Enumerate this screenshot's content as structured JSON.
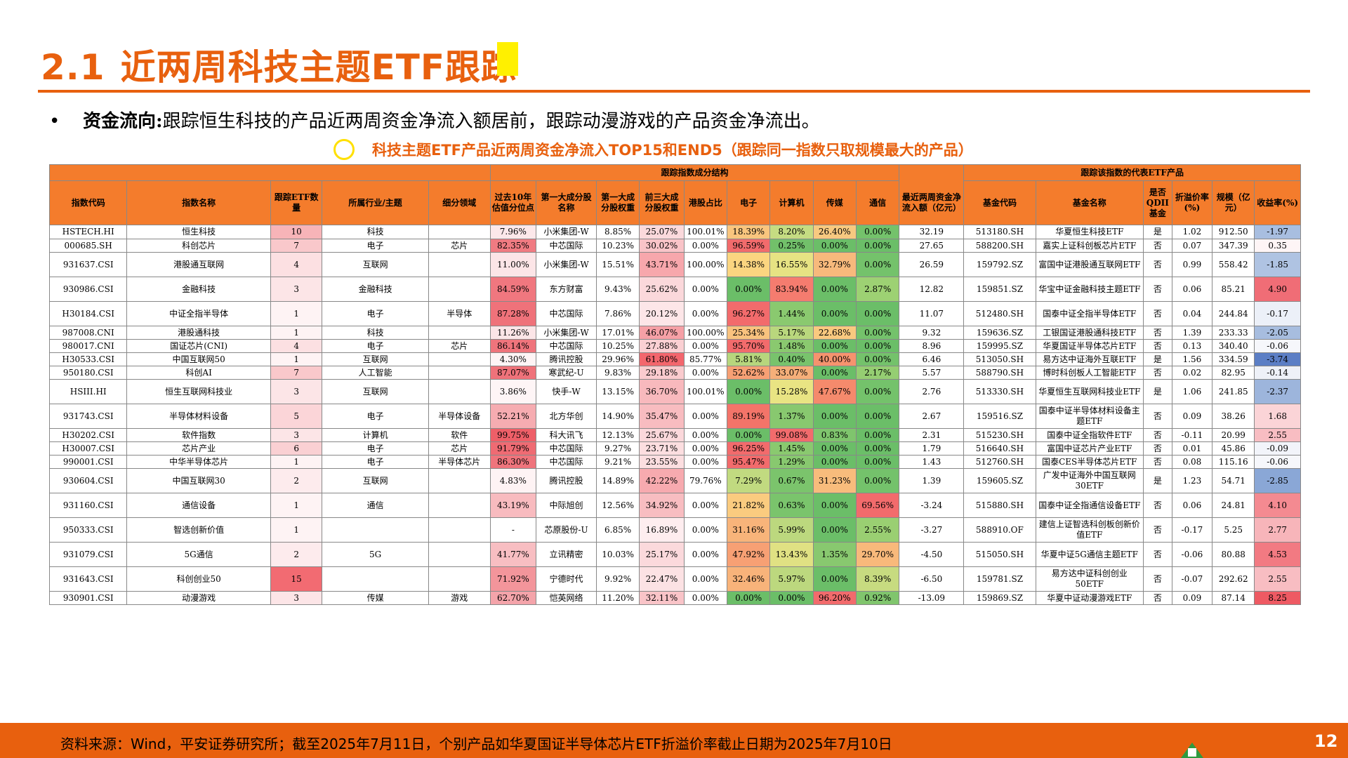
{
  "header": {
    "section_num": "2.1",
    "title": "近两周科技主题ETF跟踪",
    "bullet_symbol": "•",
    "bullet_bold": "资金流向:",
    "bullet_text": "跟踪恒生科技的产品近两周资金净流入额居前，跟踪动漫游戏的产品资金净流出。",
    "subtitle": "科技主题ETF产品近两周资金净流入TOP15和END5（跟踪同一指数只取规模最大的产品）"
  },
  "table": {
    "group_headers": {
      "index_structure": "跟踪指数成分结构",
      "etf_rep": "跟踪该指数的代表ETF产品"
    },
    "columns": [
      "指数代码",
      "指数名称",
      "跟踪ETF数量",
      "所属行业/主题",
      "细分领域",
      "过去10年估值分位点",
      "第一大成分股名称",
      "第一大成分股权重",
      "前三大成分股权重",
      "港股占比",
      "电子",
      "计算机",
      "传媒",
      "通信",
      "最近两周资金净流入额（亿元）",
      "基金代码",
      "基金名称",
      "是否QDII基金",
      "折溢价率(%)",
      "规模（亿元）",
      "收益率(%)"
    ],
    "rows": [
      {
        "cells": [
          "HSTECH.HI",
          "恒生科技",
          "10",
          "科技",
          "",
          "7.96%",
          "小米集团-W",
          "8.85%",
          "25.07%",
          "100.01%",
          "18.39%",
          "8.20%",
          "26.40%",
          "0.00%",
          "32.19",
          "513180.SH",
          "华夏恒生科技ETF",
          "是",
          "1.02",
          "912.50",
          "-1.97"
        ],
        "bg": [
          "",
          "",
          "#F7B4B8",
          "",
          "",
          "#FCE8EA",
          "",
          "",
          "#FBD9DC",
          "",
          "#F9C57E",
          "#C5DC82",
          "#F7C980",
          "#74C26B",
          "",
          "",
          "",
          "",
          "",
          "",
          "#A8BEE0"
        ]
      },
      {
        "cells": [
          "000685.SH",
          "科创芯片",
          "7",
          "电子",
          "芯片",
          "82.35%",
          "中芯国际",
          "10.23%",
          "30.02%",
          "0.00%",
          "96.59%",
          "0.25%",
          "0.00%",
          "0.00%",
          "27.65",
          "588200.SH",
          "嘉实上证科创板芯片ETF",
          "否",
          "0.07",
          "347.39",
          "0.35"
        ],
        "bg": [
          "",
          "",
          "#F9C8CB",
          "",
          "",
          "#F07B82",
          "",
          "",
          "#F9C4C8",
          "",
          "#F26B6C",
          "#72C06A",
          "#6BBE68",
          "#6BBE68",
          "",
          "",
          "",
          "",
          "",
          "",
          "#FEF5F6"
        ]
      },
      {
        "cells": [
          "931637.CSI",
          "港股通互联网",
          "4",
          "互联网",
          "",
          "11.00%",
          "小米集团-W",
          "15.51%",
          "43.71%",
          "100.00%",
          "14.38%",
          "16.55%",
          "32.79%",
          "0.00%",
          "26.59",
          "159792.SZ",
          "富国中证港股通互联网ETF",
          "否",
          "0.99",
          "558.42",
          "-1.85"
        ],
        "bg": [
          "",
          "",
          "#FCE0E2",
          "",
          "",
          "#FCE5E7",
          "",
          "",
          "#F7A7AC",
          "",
          "#FBD580",
          "#E6E383",
          "#F7B97C",
          "#74C26B",
          "",
          "",
          "",
          "",
          "",
          "",
          "#AFC3E2"
        ]
      },
      {
        "cells": [
          "930986.CSI",
          "金融科技",
          "3",
          "金融科技",
          "",
          "84.59%",
          "东方财富",
          "9.43%",
          "25.62%",
          "0.00%",
          "0.00%",
          "83.94%",
          "0.00%",
          "2.87%",
          "12.82",
          "159851.SZ",
          "华宝中证金融科技主题ETF",
          "否",
          "0.06",
          "85.21",
          "4.90"
        ],
        "bg": [
          "",
          "",
          "#FCE5E7",
          "",
          "",
          "#F0777F",
          "",
          "",
          "#FBD8DB",
          "",
          "#6BBE68",
          "#F57C6F",
          "#6BBE68",
          "#9DD173",
          "",
          "",
          "",
          "",
          "",
          "",
          "#F06D76"
        ]
      },
      {
        "cells": [
          "H30184.CSI",
          "中证全指半导体",
          "1",
          "电子",
          "半导体",
          "87.28%",
          "中芯国际",
          "7.86%",
          "20.12%",
          "0.00%",
          "96.27%",
          "1.44%",
          "0.00%",
          "0.00%",
          "11.07",
          "512480.SH",
          "国泰中证全指半导体ETF",
          "否",
          "0.04",
          "244.84",
          "-0.17"
        ],
        "bg": [
          "",
          "",
          "#FEF3F4",
          "",
          "",
          "#EF727A",
          "",
          "",
          "#FDE6E8",
          "",
          "#F26B6C",
          "#8AC96F",
          "#6BBE68",
          "#6BBE68",
          "",
          "",
          "",
          "",
          "",
          "",
          "#ECF0F8"
        ]
      },
      {
        "cells": [
          "987008.CNI",
          "港股通科技",
          "1",
          "科技",
          "",
          "11.26%",
          "小米集团-W",
          "17.01%",
          "46.07%",
          "100.00%",
          "25.34%",
          "5.17%",
          "22.68%",
          "0.00%",
          "9.32",
          "159636.SZ",
          "工银国证港股通科技ETF",
          "否",
          "1.39",
          "233.33",
          "-2.05"
        ],
        "bg": [
          "",
          "",
          "#FEF3F4",
          "",
          "",
          "#FCE5E7",
          "",
          "",
          "#F6A0A6",
          "",
          "#F9C27E",
          "#B9D77D",
          "#F9C97F",
          "#74C26B",
          "",
          "",
          "",
          "",
          "",
          "",
          "#A7BDDF"
        ]
      },
      {
        "cells": [
          "980017.CNI",
          "国证芯片(CNI)",
          "4",
          "电子",
          "芯片",
          "86.14%",
          "中芯国际",
          "10.25%",
          "27.88%",
          "0.00%",
          "95.70%",
          "1.48%",
          "0.00%",
          "0.00%",
          "8.96",
          "159995.SZ",
          "华夏国证半导体芯片ETF",
          "否",
          "0.13",
          "340.40",
          "-0.06"
        ],
        "bg": [
          "",
          "",
          "#FCE0E2",
          "",
          "",
          "#EF747C",
          "",
          "",
          "#FAD0D3",
          "",
          "#F26B6C",
          "#8AC96F",
          "#6BBE68",
          "#6BBE68",
          "",
          "",
          "",
          "",
          "",
          "",
          "#F6F7FB"
        ]
      },
      {
        "cells": [
          "H30533.CSI",
          "中国互联网50",
          "1",
          "互联网",
          "",
          "4.30%",
          "腾讯控股",
          "29.96%",
          "61.80%",
          "85.77%",
          "5.81%",
          "0.40%",
          "40.00%",
          "0.00%",
          "6.46",
          "513050.SH",
          "易方达中证海外互联ETF",
          "是",
          "1.56",
          "334.59",
          "-3.74"
        ],
        "bg": [
          "",
          "",
          "#FEF3F4",
          "",
          "",
          "#FEF4F5",
          "",
          "",
          "#F3666D",
          "",
          "#B7D67D",
          "#78C36C",
          "#F6936E",
          "#74C26B",
          "",
          "",
          "",
          "",
          "",
          "",
          "#5B7EC5"
        ]
      },
      {
        "cells": [
          "950180.CSI",
          "科创AI",
          "7",
          "人工智能",
          "",
          "87.07%",
          "寒武纪-U",
          "9.83%",
          "29.18%",
          "0.00%",
          "52.62%",
          "33.07%",
          "0.00%",
          "2.17%",
          "5.57",
          "588790.SH",
          "博时科创板人工智能ETF",
          "否",
          "0.02",
          "82.95",
          "-0.14"
        ],
        "bg": [
          "",
          "",
          "#F9C8CB",
          "",
          "",
          "#EF727A",
          "",
          "",
          "#FACBCE",
          "",
          "#F7A074",
          "#F6AF79",
          "#6BBE68",
          "#95CE72",
          "",
          "",
          "",
          "",
          "",
          "",
          "#EEF1F8"
        ]
      },
      {
        "cells": [
          "HSIII.HI",
          "恒生互联网科技业",
          "3",
          "互联网",
          "",
          "3.86%",
          "快手-W",
          "13.15%",
          "36.70%",
          "100.01%",
          "0.00%",
          "15.28%",
          "47.67%",
          "0.00%",
          "2.76",
          "513330.SH",
          "华夏恒生互联网科技业ETF",
          "是",
          "1.06",
          "241.85",
          "-2.37"
        ],
        "bg": [
          "",
          "",
          "#FCE5E7",
          "",
          "",
          "#FEF5F6",
          "",
          "",
          "#F8B9BD",
          "",
          "#6BBE68",
          "#E9E483",
          "#F58A6C",
          "#74C26B",
          "",
          "",
          "",
          "",
          "",
          "",
          "#9DB5DC"
        ]
      },
      {
        "cells": [
          "931743.CSI",
          "半导体材料设备",
          "5",
          "电子",
          "半导体设备",
          "52.21%",
          "北方华创",
          "14.90%",
          "35.47%",
          "0.00%",
          "89.19%",
          "1.37%",
          "0.00%",
          "0.00%",
          "2.67",
          "159516.SZ",
          "国泰中证半导体材料设备主题ETF",
          "否",
          "0.09",
          "38.26",
          "1.68"
        ],
        "bg": [
          "",
          "",
          "#FBD5D8",
          "",
          "",
          "#F6ACB1",
          "",
          "",
          "#F8BCC0",
          "",
          "#F37469",
          "#88C86F",
          "#6BBE68",
          "#6BBE68",
          "",
          "",
          "",
          "",
          "",
          "",
          "#FBD4D7"
        ]
      },
      {
        "cells": [
          "H30202.CSI",
          "软件指数",
          "3",
          "计算机",
          "软件",
          "99.75%",
          "科大讯飞",
          "12.13%",
          "25.67%",
          "0.00%",
          "0.00%",
          "99.08%",
          "0.83%",
          "0.00%",
          "2.31",
          "515230.SH",
          "国泰中证全指软件ETF",
          "否",
          "-0.11",
          "20.99",
          "2.55"
        ],
        "bg": [
          "",
          "",
          "#FCE5E7",
          "",
          "",
          "#EE5F68",
          "",
          "",
          "#FBD8DB",
          "",
          "#6BBE68",
          "#F26B6C",
          "#7FC56D",
          "#6BBE68",
          "",
          "",
          "",
          "",
          "",
          "",
          "#F8BDC2"
        ]
      },
      {
        "cells": [
          "H30007.CSI",
          "芯片产业",
          "6",
          "电子",
          "芯片",
          "91.79%",
          "中芯国际",
          "9.27%",
          "23.71%",
          "0.00%",
          "96.25%",
          "1.45%",
          "0.00%",
          "0.00%",
          "1.79",
          "516640.SH",
          "富国中证芯片产业ETF",
          "否",
          "0.01",
          "45.86",
          "-0.09"
        ],
        "bg": [
          "",
          "",
          "#FAD0D3",
          "",
          "",
          "#EF6B73",
          "",
          "",
          "#FCDEE0",
          "",
          "#F26B6C",
          "#8AC96F",
          "#6BBE68",
          "#6BBE68",
          "",
          "",
          "",
          "",
          "",
          "",
          "#F2F4FA"
        ]
      },
      {
        "cells": [
          "990001.CSI",
          "中华半导体芯片",
          "1",
          "电子",
          "半导体芯片",
          "86.30%",
          "中芯国际",
          "9.21%",
          "23.55%",
          "0.00%",
          "95.47%",
          "1.29%",
          "0.00%",
          "0.00%",
          "1.43",
          "512760.SH",
          "国泰CES半导体芯片ETF",
          "否",
          "0.08",
          "115.16",
          "-0.06"
        ],
        "bg": [
          "",
          "",
          "#FEF3F4",
          "",
          "",
          "#EF747C",
          "",
          "",
          "#FCDEE0",
          "",
          "#F26B6C",
          "#88C86F",
          "#6BBE68",
          "#6BBE68",
          "",
          "",
          "",
          "",
          "",
          "",
          "#F6F7FB"
        ]
      },
      {
        "cells": [
          "930604.CSI",
          "中国互联网30",
          "2",
          "互联网",
          "",
          "4.83%",
          "腾讯控股",
          "14.89%",
          "42.22%",
          "79.76%",
          "7.29%",
          "0.67%",
          "31.23%",
          "0.00%",
          "1.39",
          "159605.SZ",
          "广发中证海外中国互联网30ETF",
          "是",
          "1.23",
          "54.71",
          "-2.85"
        ],
        "bg": [
          "",
          "",
          "#FDEBED",
          "",
          "",
          "#FEF3F4",
          "",
          "",
          "#F7AAAF",
          "",
          "#C1DA80",
          "#7BC46C",
          "#F8BC7C",
          "#74C26B",
          "",
          "",
          "",
          "",
          "",
          "",
          "#8AA7D6"
        ]
      },
      {
        "cells": [
          "931160.CSI",
          "通信设备",
          "1",
          "通信",
          "",
          "43.19%",
          "中际旭创",
          "12.56%",
          "34.92%",
          "0.00%",
          "21.82%",
          "0.63%",
          "0.00%",
          "69.56%",
          "-3.24",
          "515880.SH",
          "国泰中证全指通信设备ETF",
          "否",
          "0.06",
          "24.81",
          "4.10"
        ],
        "bg": [
          "",
          "",
          "#FEF3F4",
          "",
          "",
          "#F8BBBF",
          "",
          "",
          "#F8BDC1",
          "",
          "#FACB7F",
          "#7AC46C",
          "#6BBE68",
          "#F26B6C",
          "",
          "",
          "",
          "",
          "",
          "",
          "#F48A91"
        ]
      },
      {
        "cells": [
          "950333.CSI",
          "智选创新价值",
          "1",
          "",
          "",
          "-",
          "芯原股份-U",
          "6.85%",
          "16.89%",
          "0.00%",
          "31.16%",
          "5.99%",
          "0.00%",
          "2.55%",
          "-3.27",
          "588910.OF",
          "建信上证智选科创板创新价值ETF",
          "否",
          "-0.17",
          "5.25",
          "2.77"
        ],
        "bg": [
          "",
          "",
          "#FEF3F4",
          "",
          "",
          "",
          "",
          "",
          "#FEEDEF",
          "",
          "#F8B47A",
          "#BCD87E",
          "#6BBE68",
          "#9ACF72",
          "",
          "",
          "",
          "",
          "",
          "",
          "#F7B5BA"
        ]
      },
      {
        "cells": [
          "931079.CSI",
          "5G通信",
          "2",
          "5G",
          "",
          "41.77%",
          "立讯精密",
          "10.03%",
          "25.17%",
          "0.00%",
          "47.92%",
          "13.43%",
          "1.35%",
          "29.70%",
          "-4.50",
          "515050.SH",
          "华夏中证5G通信主题ETF",
          "否",
          "-0.06",
          "80.88",
          "4.53"
        ],
        "bg": [
          "",
          "",
          "#FDEBED",
          "",
          "",
          "#F8BEC2",
          "",
          "",
          "#FBD9DC",
          "",
          "#F7A074",
          "#E0E183",
          "#88C86F",
          "#F8B97B",
          "",
          "",
          "",
          "",
          "",
          "",
          "#F27A82"
        ]
      },
      {
        "cells": [
          "931643.CSI",
          "科创创业50",
          "15",
          "",
          "",
          "71.92%",
          "宁德时代",
          "9.92%",
          "22.47%",
          "0.00%",
          "32.46%",
          "5.97%",
          "0.00%",
          "8.39%",
          "-6.50",
          "159781.SZ",
          "易方达中证科创创业50ETF",
          "否",
          "-0.07",
          "292.62",
          "2.55"
        ],
        "bg": [
          "",
          "",
          "#F26B72",
          "",
          "",
          "#F3959B",
          "",
          "",
          "#FCE2E4",
          "",
          "#F8B37A",
          "#BCD87E",
          "#6BBE68",
          "#C7DB80",
          "",
          "",
          "",
          "",
          "",
          "",
          "#F8BDC2"
        ]
      },
      {
        "cells": [
          "930901.CSI",
          "动漫游戏",
          "3",
          "传媒",
          "游戏",
          "62.70%",
          "恺英网络",
          "11.20%",
          "32.11%",
          "0.00%",
          "0.00%",
          "0.00%",
          "96.20%",
          "0.92%",
          "-13.09",
          "159869.SZ",
          "华夏中证动漫游戏ETF",
          "否",
          "0.09",
          "87.14",
          "8.25"
        ],
        "bg": [
          "",
          "",
          "#FCE5E7",
          "",
          "",
          "#F4A4AA",
          "",
          "",
          "#F9C4C8",
          "",
          "#6BBE68",
          "#6BBE68",
          "#F26B6C",
          "#80C56D",
          "",
          "",
          "",
          "",
          "",
          "",
          "#EE5A63"
        ]
      }
    ],
    "row_heights": [
      20,
      19,
      35,
      35,
      35,
      19,
      19,
      19,
      19,
      35,
      35,
      19,
      19,
      19,
      35,
      35,
      35,
      35,
      35,
      19
    ]
  },
  "footer": {
    "source": "资料来源：Wind，平安证券研究所；截至2025年7月11日，个别产品如华夏国证半导体芯片ETF折溢价率截止日期为2025年7月10日",
    "page": "12"
  }
}
